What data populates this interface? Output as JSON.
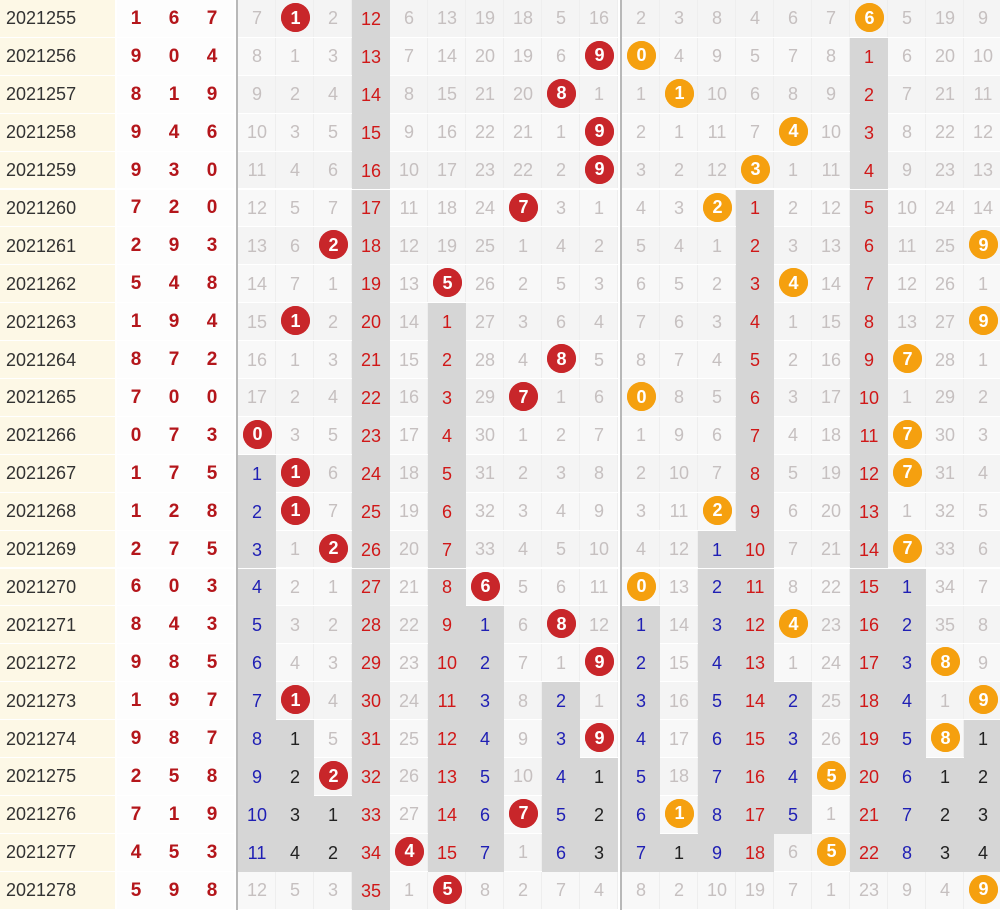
{
  "rows": [
    {
      "issue": "2021255",
      "draw": [
        1,
        6,
        7
      ],
      "g1": [
        7,
        1,
        2,
        12,
        6,
        13,
        19,
        18,
        5,
        16
      ],
      "g2": [
        2,
        3,
        8,
        4,
        6,
        7,
        6,
        5,
        19,
        9
      ]
    },
    {
      "issue": "2021256",
      "draw": [
        9,
        0,
        4
      ],
      "g1": [
        8,
        1,
        3,
        13,
        7,
        14,
        20,
        19,
        6,
        9
      ],
      "g2": [
        0,
        4,
        9,
        5,
        7,
        8,
        1,
        6,
        20,
        10
      ]
    },
    {
      "issue": "2021257",
      "draw": [
        8,
        1,
        9
      ],
      "g1": [
        9,
        2,
        4,
        14,
        8,
        15,
        21,
        20,
        8,
        1
      ],
      "g2": [
        1,
        1,
        10,
        6,
        8,
        9,
        2,
        7,
        21,
        11
      ]
    },
    {
      "issue": "2021258",
      "draw": [
        9,
        4,
        6
      ],
      "g1": [
        10,
        3,
        5,
        15,
        9,
        16,
        22,
        21,
        1,
        9
      ],
      "g2": [
        2,
        1,
        11,
        7,
        4,
        10,
        3,
        8,
        22,
        12
      ]
    },
    {
      "issue": "2021259",
      "draw": [
        9,
        3,
        0
      ],
      "g1": [
        11,
        4,
        6,
        16,
        10,
        17,
        23,
        22,
        2,
        9
      ],
      "g2": [
        3,
        2,
        12,
        3,
        1,
        11,
        4,
        9,
        23,
        13
      ]
    },
    {
      "issue": "2021260",
      "draw": [
        7,
        2,
        0
      ],
      "g1": [
        12,
        5,
        7,
        17,
        11,
        18,
        24,
        7,
        3,
        1
      ],
      "g2": [
        4,
        3,
        2,
        1,
        2,
        12,
        5,
        10,
        24,
        14
      ]
    },
    {
      "issue": "2021261",
      "draw": [
        2,
        9,
        3
      ],
      "g1": [
        13,
        6,
        2,
        18,
        12,
        19,
        25,
        1,
        4,
        2
      ],
      "g2": [
        5,
        4,
        1,
        2,
        3,
        13,
        6,
        11,
        25,
        9
      ]
    },
    {
      "issue": "2021262",
      "draw": [
        5,
        4,
        8
      ],
      "g1": [
        14,
        7,
        1,
        19,
        13,
        5,
        26,
        2,
        5,
        3
      ],
      "g2": [
        6,
        5,
        2,
        3,
        4,
        14,
        7,
        12,
        26,
        1
      ]
    },
    {
      "issue": "2021263",
      "draw": [
        1,
        9,
        4
      ],
      "g1": [
        15,
        1,
        2,
        20,
        14,
        1,
        27,
        3,
        6,
        4
      ],
      "g2": [
        7,
        6,
        3,
        4,
        1,
        15,
        8,
        13,
        27,
        9
      ]
    },
    {
      "issue": "2021264",
      "draw": [
        8,
        7,
        2
      ],
      "g1": [
        16,
        1,
        3,
        21,
        15,
        2,
        28,
        4,
        8,
        5
      ],
      "g2": [
        8,
        7,
        4,
        5,
        2,
        16,
        9,
        7,
        28,
        1
      ]
    },
    {
      "issue": "2021265",
      "draw": [
        7,
        0,
        0
      ],
      "g1": [
        17,
        2,
        4,
        22,
        16,
        3,
        29,
        7,
        1,
        6
      ],
      "g2": [
        0,
        8,
        5,
        6,
        3,
        17,
        10,
        1,
        29,
        2
      ]
    },
    {
      "issue": "2021266",
      "draw": [
        0,
        7,
        3
      ],
      "g1": [
        0,
        3,
        5,
        23,
        17,
        4,
        30,
        1,
        2,
        7
      ],
      "g2": [
        1,
        9,
        6,
        7,
        4,
        18,
        11,
        7,
        30,
        3
      ]
    },
    {
      "issue": "2021267",
      "draw": [
        1,
        7,
        5
      ],
      "g1": [
        1,
        1,
        6,
        24,
        18,
        5,
        31,
        2,
        3,
        8
      ],
      "g2": [
        2,
        10,
        7,
        8,
        5,
        19,
        12,
        7,
        31,
        4
      ]
    },
    {
      "issue": "2021268",
      "draw": [
        1,
        2,
        8
      ],
      "g1": [
        2,
        1,
        7,
        25,
        19,
        6,
        32,
        3,
        4,
        9
      ],
      "g2": [
        3,
        11,
        2,
        9,
        6,
        20,
        13,
        1,
        32,
        5
      ]
    },
    {
      "issue": "2021269",
      "draw": [
        2,
        7,
        5
      ],
      "g1": [
        3,
        1,
        2,
        26,
        20,
        7,
        33,
        4,
        5,
        10
      ],
      "g2": [
        4,
        12,
        1,
        10,
        7,
        21,
        14,
        7,
        33,
        6
      ]
    },
    {
      "issue": "2021270",
      "draw": [
        6,
        0,
        3
      ],
      "g1": [
        4,
        2,
        1,
        27,
        21,
        8,
        6,
        5,
        6,
        11
      ],
      "g2": [
        0,
        13,
        2,
        11,
        8,
        22,
        15,
        1,
        34,
        7
      ]
    },
    {
      "issue": "2021271",
      "draw": [
        8,
        4,
        3
      ],
      "g1": [
        5,
        3,
        2,
        28,
        22,
        9,
        1,
        6,
        8,
        12
      ],
      "g2": [
        1,
        14,
        3,
        12,
        4,
        23,
        16,
        2,
        35,
        8
      ]
    },
    {
      "issue": "2021272",
      "draw": [
        9,
        8,
        5
      ],
      "g1": [
        6,
        4,
        3,
        29,
        23,
        10,
        2,
        7,
        1,
        9
      ],
      "g2": [
        2,
        15,
        4,
        13,
        1,
        24,
        17,
        3,
        8,
        9
      ]
    },
    {
      "issue": "2021273",
      "draw": [
        1,
        9,
        7
      ],
      "g1": [
        7,
        1,
        4,
        30,
        24,
        11,
        3,
        8,
        2,
        1
      ],
      "g2": [
        3,
        16,
        5,
        14,
        2,
        25,
        18,
        4,
        1,
        9
      ]
    },
    {
      "issue": "2021274",
      "draw": [
        9,
        8,
        7
      ],
      "g1": [
        8,
        1,
        5,
        31,
        25,
        12,
        4,
        9,
        3,
        9
      ],
      "g2": [
        4,
        17,
        6,
        15,
        3,
        26,
        19,
        5,
        8,
        1
      ]
    },
    {
      "issue": "2021275",
      "draw": [
        2,
        5,
        8
      ],
      "g1": [
        9,
        2,
        2,
        32,
        26,
        13,
        5,
        10,
        4,
        1
      ],
      "g2": [
        5,
        18,
        7,
        16,
        4,
        5,
        20,
        6,
        1,
        2
      ]
    },
    {
      "issue": "2021276",
      "draw": [
        7,
        1,
        9
      ],
      "g1": [
        10,
        3,
        1,
        33,
        27,
        14,
        6,
        7,
        5,
        2
      ],
      "g2": [
        6,
        1,
        8,
        17,
        5,
        1,
        21,
        7,
        2,
        3
      ]
    },
    {
      "issue": "2021277",
      "draw": [
        4,
        5,
        3
      ],
      "g1": [
        11,
        4,
        2,
        34,
        4,
        15,
        7,
        1,
        6,
        3
      ],
      "g2": [
        7,
        1,
        9,
        18,
        6,
        5,
        22,
        8,
        3,
        4
      ]
    },
    {
      "issue": "2021278",
      "draw": [
        5,
        9,
        8
      ],
      "g1": [
        12,
        5,
        3,
        35,
        1,
        5,
        8,
        2,
        7,
        4
      ],
      "g2": [
        8,
        2,
        10,
        19,
        7,
        1,
        23,
        9,
        4,
        9
      ]
    }
  ],
  "colors": {
    "issue_bg": "#fdf8e6",
    "draw_text": "#b4161b",
    "miss_text": "#c6c0c0",
    "hit_red": "#c8262a",
    "hit_orange": "#f5a00f",
    "blue_text": "#1f1fb4",
    "red_text": "#d01818"
  }
}
